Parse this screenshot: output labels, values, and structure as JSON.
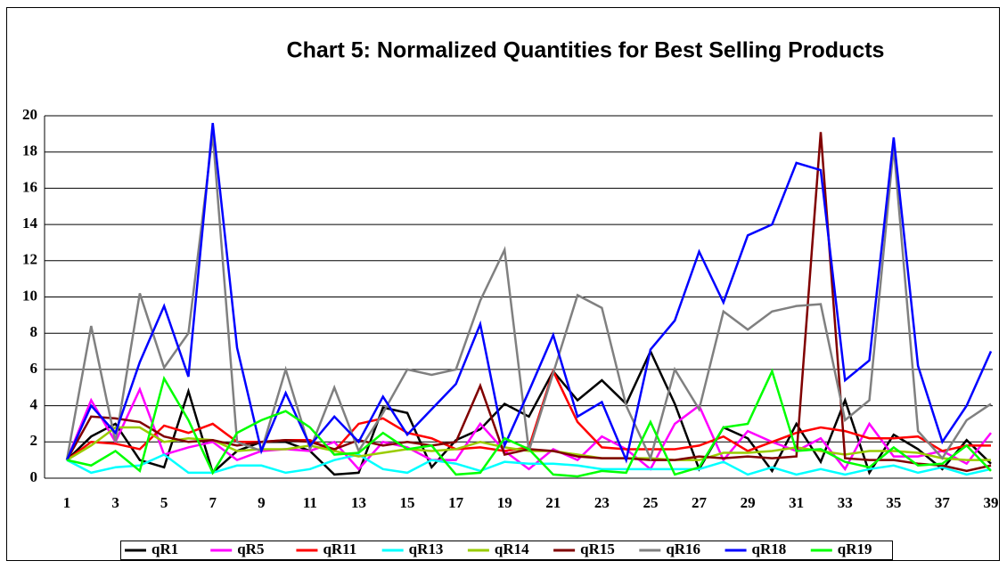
{
  "chart_data": {
    "type": "line",
    "title": "Chart 5: Normalized Quantities for Best Selling Products",
    "categories": [
      "1",
      null,
      "3",
      null,
      "5",
      null,
      "7",
      null,
      "9",
      null,
      "11",
      null,
      "13",
      null,
      "15",
      null,
      "17",
      null,
      "19",
      null,
      "21",
      null,
      "23",
      null,
      "25",
      null,
      "27",
      null,
      "29",
      null,
      "31",
      null,
      "33",
      null,
      "35",
      null,
      "37",
      null,
      "39"
    ],
    "ylim": [
      0,
      20
    ],
    "yticks": [
      0,
      2,
      4,
      6,
      8,
      10,
      12,
      14,
      16,
      18,
      20
    ],
    "grid": true,
    "legend": "bottom",
    "series": [
      {
        "name": "qR1",
        "color": "#000000",
        "values": [
          1,
          2.3,
          3,
          1,
          0.6,
          4.8,
          0.3,
          1.5,
          2,
          2,
          1.5,
          0.2,
          0.3,
          3.9,
          3.6,
          0.6,
          2.1,
          2.7,
          4.1,
          3.4,
          5.9,
          4.3,
          5.4,
          4.1,
          7,
          4.1,
          0.5,
          2.8,
          2.2,
          0.4,
          3,
          0.9,
          4.3,
          0.3,
          2.4,
          1.6,
          0.5,
          2.1,
          0.8
        ]
      },
      {
        "name": "qR5",
        "color": "#ff00ff",
        "values": [
          1,
          4.3,
          2,
          4.9,
          1.3,
          1.7,
          2,
          1,
          1.5,
          1.6,
          1.5,
          2,
          0.5,
          2,
          1.7,
          1,
          1,
          3,
          1.5,
          0.5,
          1.6,
          1,
          2.3,
          1.6,
          0.5,
          3,
          4,
          1,
          2.6,
          2,
          1.5,
          2.2,
          0.5,
          3,
          1.2,
          1.2,
          1.5,
          0.8,
          2.5
        ]
      },
      {
        "name": "qR11",
        "color": "#ff0000",
        "values": [
          1,
          2,
          1.9,
          1.6,
          2.9,
          2.5,
          3,
          2,
          2,
          2.1,
          2.1,
          1.5,
          3,
          3.3,
          2.5,
          2.2,
          1.6,
          1.7,
          1.5,
          1.7,
          5.9,
          3.1,
          1.7,
          1.6,
          1.6,
          1.6,
          1.8,
          2.3,
          1.5,
          2,
          2.5,
          2.8,
          2.6,
          2.2,
          2.2,
          2.3,
          1.5,
          1.8,
          1.8
        ]
      },
      {
        "name": "qR13",
        "color": "#00ffff",
        "values": [
          1,
          0.3,
          0.6,
          0.7,
          1.3,
          0.3,
          0.3,
          0.7,
          0.7,
          0.3,
          0.5,
          1,
          1.3,
          0.5,
          0.3,
          1,
          0.8,
          0.4,
          0.9,
          0.8,
          0.8,
          0.7,
          0.5,
          0.5,
          0.5,
          0.5,
          0.5,
          0.9,
          0.2,
          0.6,
          0.2,
          0.5,
          0.2,
          0.5,
          0.7,
          0.3,
          0.6,
          0.2,
          0.5
        ]
      },
      {
        "name": "qR14",
        "color": "#99cc00",
        "values": [
          1,
          1.8,
          2.8,
          2.8,
          2,
          2.2,
          2.1,
          1.5,
          1.6,
          1.6,
          1.8,
          1.5,
          1.2,
          1.4,
          1.6,
          1.5,
          1.6,
          2,
          1.7,
          1.5,
          1.5,
          1.3,
          1.1,
          1.1,
          1.1,
          1,
          1,
          1.4,
          1.4,
          1.5,
          1.7,
          1.5,
          1.3,
          1.5,
          1.5,
          1.4,
          1.1,
          1,
          1
        ]
      },
      {
        "name": "qR15",
        "color": "#800000",
        "values": [
          1,
          3.4,
          3.3,
          3.1,
          2.3,
          2,
          2.1,
          1.8,
          2,
          2.1,
          2,
          1.6,
          2.1,
          1.8,
          2,
          1.8,
          2,
          5.1,
          1.3,
          1.6,
          1.5,
          1.2,
          1.1,
          1.1,
          1,
          1,
          1.2,
          1.1,
          1.2,
          1.1,
          1.2,
          19.1,
          1.1,
          1,
          1,
          0.8,
          0.7,
          0.4,
          0.7
        ]
      },
      {
        "name": "qR16",
        "color": "#808080",
        "values": [
          1,
          8.4,
          2,
          10.2,
          6.1,
          8,
          19,
          2,
          1.5,
          6,
          1.6,
          5,
          1.5,
          3.6,
          6,
          5.7,
          6,
          9.8,
          12.6,
          1.5,
          5.8,
          10.1,
          9.4,
          4,
          1.1,
          6,
          3.8,
          9.2,
          8.2,
          9.2,
          9.5,
          9.6,
          3.2,
          4.3,
          18.3,
          2.6,
          1.1,
          3.2,
          4.1
        ]
      },
      {
        "name": "qR18",
        "color": "#0000ff",
        "values": [
          1,
          4,
          2.5,
          6.4,
          9.5,
          5.6,
          19.6,
          7.2,
          1.5,
          4.7,
          1.8,
          3.4,
          2,
          4.5,
          2.4,
          3.8,
          5.2,
          8.5,
          1.8,
          4.8,
          7.9,
          3.4,
          4.2,
          1,
          7.1,
          8.7,
          12.5,
          9.7,
          13.4,
          14,
          17.4,
          17,
          5.4,
          6.5,
          18.8,
          6.2,
          2,
          4,
          7
        ]
      },
      {
        "name": "qR19",
        "color": "#00ff00",
        "values": [
          1,
          0.7,
          1.5,
          0.4,
          5.5,
          3.2,
          0.3,
          2.5,
          3.2,
          3.7,
          2.8,
          1.3,
          1.4,
          2.5,
          1.6,
          1.8,
          0.2,
          0.3,
          2.2,
          1.6,
          0.2,
          0.1,
          0.4,
          0.3,
          3.1,
          0.2,
          0.6,
          2.8,
          3,
          5.9,
          1.5,
          1.6,
          0.9,
          0.6,
          1.7,
          0.7,
          0.8,
          1.8,
          0.4
        ]
      }
    ]
  }
}
